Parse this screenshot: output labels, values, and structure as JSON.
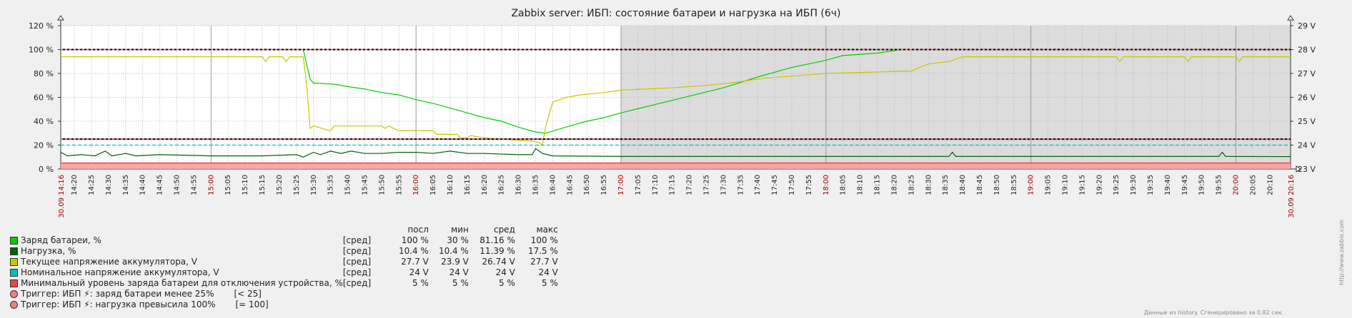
{
  "chart_data": {
    "type": "line",
    "title": "Zabbix server: ИБП: состояние батареи и нагрузка на ИБП (6ч)",
    "time_range": {
      "start": "30.09 14:16",
      "end": "30.09 20:16"
    },
    "left_axis": {
      "ticks": [
        "0 %",
        "20 %",
        "40 %",
        "60 %",
        "80 %",
        "100 %",
        "120 %"
      ],
      "ylim": [
        0,
        120
      ]
    },
    "right_axis": {
      "ticks": [
        "23 V",
        "24 V",
        "25 V",
        "26 V",
        "27 V",
        "28 V",
        "29 V"
      ],
      "ylim": [
        23,
        29
      ]
    },
    "x_tick_labels": [
      "14:20",
      "14:25",
      "14:30",
      "14:35",
      "14:40",
      "14:45",
      "14:50",
      "14:55",
      "15:00",
      "15:05",
      "15:10",
      "15:15",
      "15:20",
      "15:25",
      "15:30",
      "15:35",
      "15:40",
      "15:45",
      "15:50",
      "15:55",
      "16:00",
      "16:05",
      "16:10",
      "16:15",
      "16:20",
      "16:25",
      "16:30",
      "16:35",
      "16:40",
      "16:45",
      "16:50",
      "16:55",
      "17:00",
      "17:05",
      "17:10",
      "17:15",
      "17:20",
      "17:25",
      "17:30",
      "17:35",
      "17:40",
      "17:45",
      "17:50",
      "17:55",
      "18:00",
      "18:05",
      "18:10",
      "18:15",
      "18:20",
      "18:25",
      "18:30",
      "18:35",
      "18:40",
      "18:45",
      "18:50",
      "18:55",
      "19:00",
      "19:05",
      "19:10",
      "19:15",
      "19:20",
      "19:25",
      "19:30",
      "19:35",
      "19:40",
      "19:45",
      "19:50",
      "19:55",
      "20:00",
      "20:05",
      "20:10"
    ],
    "major_hours": [
      "15:00",
      "16:00",
      "17:00",
      "18:00",
      "19:00",
      "20:00"
    ],
    "shaded_period": {
      "from": "17:00",
      "to": "20:16"
    },
    "series": [
      {
        "name": "Заряд батареи, %",
        "color": "#00d000",
        "axis": "left",
        "points": [
          [
            "14:16",
            100
          ],
          [
            "15:27",
            100
          ],
          [
            "15:29",
            75
          ],
          [
            "15:30",
            72
          ],
          [
            "15:36",
            71
          ],
          [
            "15:40",
            69
          ],
          [
            "15:45",
            67
          ],
          [
            "15:50",
            64
          ],
          [
            "15:55",
            62
          ],
          [
            "16:00",
            58
          ],
          [
            "16:05",
            55
          ],
          [
            "16:10",
            51
          ],
          [
            "16:15",
            47
          ],
          [
            "16:20",
            43
          ],
          [
            "16:25",
            40
          ],
          [
            "16:30",
            35
          ],
          [
            "16:35",
            31
          ],
          [
            "16:38",
            30
          ],
          [
            "16:45",
            36
          ],
          [
            "16:50",
            40
          ],
          [
            "16:55",
            43
          ],
          [
            "17:00",
            47
          ],
          [
            "17:10",
            54
          ],
          [
            "17:20",
            61
          ],
          [
            "17:30",
            68
          ],
          [
            "17:40",
            77
          ],
          [
            "17:50",
            85
          ],
          [
            "18:00",
            91
          ],
          [
            "18:05",
            95
          ],
          [
            "18:15",
            97
          ],
          [
            "18:22",
            100
          ],
          [
            "20:16",
            100
          ]
        ]
      },
      {
        "name": "Нагрузка, %",
        "color": "#006400",
        "axis": "left",
        "points": [
          [
            "14:16",
            14
          ],
          [
            "14:18",
            11
          ],
          [
            "14:22",
            12
          ],
          [
            "14:26",
            11
          ],
          [
            "14:29",
            15
          ],
          [
            "14:31",
            11
          ],
          [
            "14:35",
            13
          ],
          [
            "14:38",
            11
          ],
          [
            "14:45",
            12
          ],
          [
            "15:00",
            11
          ],
          [
            "15:15",
            11
          ],
          [
            "15:25",
            12
          ],
          [
            "15:27",
            10
          ],
          [
            "15:30",
            14
          ],
          [
            "15:32",
            12
          ],
          [
            "15:35",
            15
          ],
          [
            "15:38",
            13
          ],
          [
            "15:41",
            15
          ],
          [
            "15:45",
            13
          ],
          [
            "15:50",
            13
          ],
          [
            "15:55",
            14
          ],
          [
            "16:00",
            14
          ],
          [
            "16:05",
            13
          ],
          [
            "16:10",
            15
          ],
          [
            "16:15",
            13
          ],
          [
            "16:20",
            13
          ],
          [
            "16:30",
            12
          ],
          [
            "16:34",
            12
          ],
          [
            "16:35",
            17
          ],
          [
            "16:37",
            13
          ],
          [
            "16:40",
            11
          ],
          [
            "17:00",
            10.5
          ],
          [
            "18:00",
            10.5
          ],
          [
            "18:36",
            10.5
          ],
          [
            "18:37",
            14
          ],
          [
            "18:38",
            10.5
          ],
          [
            "19:55",
            10.5
          ],
          [
            "19:56",
            14
          ],
          [
            "19:57",
            10.5
          ],
          [
            "20:16",
            10.4
          ]
        ]
      },
      {
        "name": "Текущее напряжение аккумулятора, V",
        "color": "#c8c800",
        "axis": "right",
        "points": [
          [
            "14:16",
            27.7
          ],
          [
            "15:15",
            27.7
          ],
          [
            "15:16",
            27.5
          ],
          [
            "15:17",
            27.7
          ],
          [
            "15:21",
            27.7
          ],
          [
            "15:22",
            27.5
          ],
          [
            "15:23",
            27.7
          ],
          [
            "15:27",
            27.7
          ],
          [
            "15:28",
            26.5
          ],
          [
            "15:29",
            24.7
          ],
          [
            "15:30",
            24.8
          ],
          [
            "15:35",
            24.6
          ],
          [
            "15:36",
            24.8
          ],
          [
            "15:50",
            24.8
          ],
          [
            "15:51",
            24.7
          ],
          [
            "15:52",
            24.8
          ],
          [
            "15:55",
            24.6
          ],
          [
            "16:05",
            24.6
          ],
          [
            "16:06",
            24.45
          ],
          [
            "16:12",
            24.45
          ],
          [
            "16:13",
            24.3
          ],
          [
            "16:15",
            24.3
          ],
          [
            "16:16",
            24.4
          ],
          [
            "16:20",
            24.3
          ],
          [
            "16:30",
            24.2
          ],
          [
            "16:35",
            24.15
          ],
          [
            "16:36",
            24.1
          ],
          [
            "16:37",
            24.0
          ],
          [
            "16:38",
            24.8
          ],
          [
            "16:40",
            25.8
          ],
          [
            "16:42",
            25.9
          ],
          [
            "16:44",
            26.0
          ],
          [
            "16:48",
            26.1
          ],
          [
            "16:55",
            26.2
          ],
          [
            "17:00",
            26.3
          ],
          [
            "17:15",
            26.4
          ],
          [
            "17:25",
            26.5
          ],
          [
            "17:32",
            26.6
          ],
          [
            "17:42",
            26.8
          ],
          [
            "18:00",
            27.0
          ],
          [
            "18:25",
            27.1
          ],
          [
            "18:30",
            27.4
          ],
          [
            "18:36",
            27.5
          ],
          [
            "18:40",
            27.7
          ],
          [
            "19:25",
            27.7
          ],
          [
            "19:26",
            27.5
          ],
          [
            "19:27",
            27.7
          ],
          [
            "19:45",
            27.7
          ],
          [
            "19:46",
            27.5
          ],
          [
            "19:47",
            27.7
          ],
          [
            "20:00",
            27.7
          ],
          [
            "20:01",
            27.5
          ],
          [
            "20:02",
            27.7
          ],
          [
            "20:16",
            27.7
          ]
        ]
      },
      {
        "name": "Номинальное напряжение аккумулятора, V",
        "color": "#00c0c0",
        "axis": "right",
        "dash": "5 3",
        "points": [
          [
            "14:16",
            24
          ],
          [
            "20:16",
            24
          ]
        ]
      },
      {
        "name": "Минимальный уровень заряда батареи для отключения устройства, %",
        "color": "#ee4444",
        "axis": "left",
        "type": "area",
        "points": [
          [
            "14:16",
            5
          ],
          [
            "20:16",
            5
          ]
        ]
      }
    ],
    "triggers": [
      {
        "name": "Триггер: ИБП ⚡: заряд батареи менее 25%",
        "cond": "[< 25]",
        "value": 25,
        "color": "#e87a7a"
      },
      {
        "name": "Триггер: ИБП ⚡: нагрузка превысила 100%",
        "cond": "[= 100]",
        "value": 100,
        "color": "#e87a7a"
      }
    ]
  },
  "legend": {
    "headers": {
      "last": "посл",
      "min": "мин",
      "avg": "сред",
      "max": "макс"
    },
    "rows": [
      {
        "name": "Заряд батареи, %",
        "func": "[сред]",
        "last": "100 %",
        "min": "30 %",
        "avg": "81.16 %",
        "max": "100 %",
        "color": "#00d000"
      },
      {
        "name": "Нагрузка, %",
        "func": "[сред]",
        "last": "10.4 %",
        "min": "10.4 %",
        "avg": "11.39 %",
        "max": "17.5 %",
        "color": "#006400"
      },
      {
        "name": "Текущее напряжение аккумулятора, V",
        "func": "[сред]",
        "last": "27.7 V",
        "min": "23.9 V",
        "avg": "26.74 V",
        "max": "27.7 V",
        "color": "#c8c800"
      },
      {
        "name": "Номинальное напряжение аккумулятора, V",
        "func": "[сред]",
        "last": "24 V",
        "min": "24 V",
        "avg": "24 V",
        "max": "24 V",
        "color": "#00c0c0"
      },
      {
        "name": "Минимальный уровень заряда батареи для отключения устройства, %",
        "func": "[сред]",
        "last": "5 %",
        "min": "5 %",
        "avg": "5 %",
        "max": "5 %",
        "color": "#ee4444"
      }
    ],
    "triggers": [
      {
        "name": "Триггер: ИБП ⚡: заряд батареи менее 25%",
        "cond": "[< 25]",
        "color": "#f08080"
      },
      {
        "name": "Триггер: ИБП ⚡: нагрузка превысила 100%",
        "cond": "[= 100]",
        "color": "#f08080"
      }
    ]
  },
  "footer": {
    "generated": "Данные из history. Сгенерировано за 0.82 сек.",
    "url": "http://www.zabbix.com"
  }
}
